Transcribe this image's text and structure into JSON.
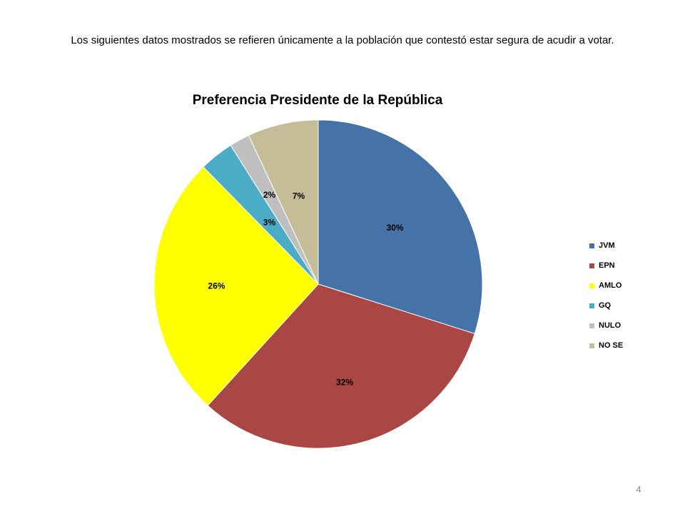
{
  "intro_text": "Los siguientes datos mostrados se refieren únicamente a la población que contestó estar segura de acudir a votar.",
  "page_number": "4",
  "chart_data": {
    "type": "pie",
    "title": "Preferencia Presidente de la República",
    "legend_position": "right",
    "slices": [
      {
        "label": "JVM",
        "value": 30,
        "display": "30%",
        "color": "#4572A7"
      },
      {
        "label": "EPN",
        "value": 32,
        "display": "32%",
        "color": "#AA4643"
      },
      {
        "label": "AMLO",
        "value": 26,
        "display": "26%",
        "color": "#FFFF00"
      },
      {
        "label": "GQ",
        "value": 3.4,
        "display": "3%",
        "color": "#4BACC6"
      },
      {
        "label": "NULO",
        "value": 2,
        "display": "2%",
        "color": "#BFBFBF"
      },
      {
        "label": "NO SE",
        "value": 7,
        "display": "7%",
        "color": "#C4BD97"
      }
    ]
  }
}
